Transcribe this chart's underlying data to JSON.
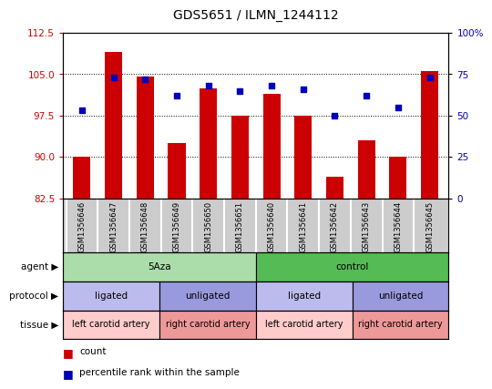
{
  "title": "GDS5651 / ILMN_1244112",
  "samples": [
    "GSM1356646",
    "GSM1356647",
    "GSM1356648",
    "GSM1356649",
    "GSM1356650",
    "GSM1356651",
    "GSM1356640",
    "GSM1356641",
    "GSM1356642",
    "GSM1356643",
    "GSM1356644",
    "GSM1356645"
  ],
  "count_values": [
    90.0,
    109.0,
    104.5,
    92.5,
    102.5,
    97.5,
    101.5,
    97.5,
    86.5,
    93.0,
    90.0,
    105.5
  ],
  "percentile_values": [
    53,
    73,
    72,
    62,
    68,
    65,
    68,
    66,
    50,
    62,
    55,
    73
  ],
  "ylim_left": [
    82.5,
    112.5
  ],
  "ylim_right": [
    0,
    100
  ],
  "yticks_left": [
    82.5,
    90.0,
    97.5,
    105.0,
    112.5
  ],
  "yticks_right": [
    0,
    25,
    50,
    75,
    100
  ],
  "bar_color": "#cc0000",
  "dot_color": "#0000bb",
  "bar_bottom": 82.5,
  "agent_groups": [
    {
      "label": "5Aza",
      "start": 0,
      "end": 6,
      "color": "#aaddaa"
    },
    {
      "label": "control",
      "start": 6,
      "end": 12,
      "color": "#55bb55"
    }
  ],
  "protocol_groups": [
    {
      "label": "ligated",
      "start": 0,
      "end": 3,
      "color": "#bbbbee"
    },
    {
      "label": "unligated",
      "start": 3,
      "end": 6,
      "color": "#9999dd"
    },
    {
      "label": "ligated",
      "start": 6,
      "end": 9,
      "color": "#bbbbee"
    },
    {
      "label": "unligated",
      "start": 9,
      "end": 12,
      "color": "#9999dd"
    }
  ],
  "tissue_groups": [
    {
      "label": "left carotid artery",
      "start": 0,
      "end": 3,
      "color": "#ffcccc"
    },
    {
      "label": "right carotid artery",
      "start": 3,
      "end": 6,
      "color": "#ee9999"
    },
    {
      "label": "left carotid artery",
      "start": 6,
      "end": 9,
      "color": "#ffcccc"
    },
    {
      "label": "right carotid artery",
      "start": 9,
      "end": 12,
      "color": "#ee9999"
    }
  ],
  "row_labels": [
    "agent",
    "protocol",
    "tissue"
  ],
  "legend_count": "count",
  "legend_percentile": "percentile rank within the sample",
  "tick_label_color_left": "#cc0000",
  "tick_label_color_right": "#0000bb",
  "xtick_bg_color": "#cccccc",
  "sample_label_fontsize": 6.0,
  "annot_fontsize": 7.5,
  "tissue_fontsize": 7.0
}
